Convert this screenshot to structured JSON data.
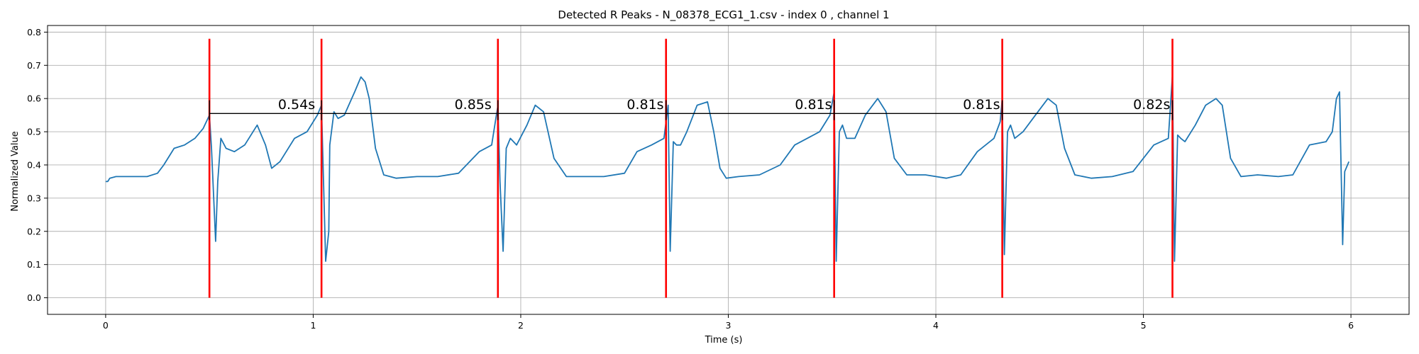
{
  "chart_data": {
    "type": "line",
    "title": "Detected R Peaks - N_08378_ECG1_1.csv - index 0 , channel 1",
    "xlabel": "Time (s)",
    "ylabel": "Normalized Value",
    "xlim": [
      -0.28,
      6.28
    ],
    "ylim": [
      -0.05,
      0.82
    ],
    "xticks": [
      0,
      1,
      2,
      3,
      4,
      5,
      6
    ],
    "xtick_labels": [
      "0",
      "1",
      "2",
      "3",
      "4",
      "5",
      "6"
    ],
    "yticks": [
      0.0,
      0.1,
      0.2,
      0.3,
      0.4,
      0.5,
      0.6,
      0.7,
      0.8
    ],
    "ytick_labels": [
      "0.0",
      "0.1",
      "0.2",
      "0.3",
      "0.4",
      "0.5",
      "0.6",
      "0.7",
      "0.8"
    ],
    "grid": true,
    "colors": {
      "signal": "#1f77b4",
      "peaks": "#ff0000",
      "interval_line": "#000000"
    },
    "signal": {
      "x": [
        0.0,
        0.01,
        0.02,
        0.05,
        0.1,
        0.2,
        0.25,
        0.28,
        0.33,
        0.38,
        0.43,
        0.47,
        0.5,
        0.51,
        0.53,
        0.54,
        0.555,
        0.58,
        0.62,
        0.67,
        0.73,
        0.77,
        0.8,
        0.84,
        0.87,
        0.91,
        0.97,
        1.02,
        1.04,
        1.06,
        1.075,
        1.08,
        1.1,
        1.12,
        1.15,
        1.2,
        1.23,
        1.25,
        1.27,
        1.3,
        1.34,
        1.4,
        1.5,
        1.6,
        1.7,
        1.8,
        1.86,
        1.89,
        1.9,
        1.915,
        1.93,
        1.95,
        1.98,
        2.03,
        2.07,
        2.11,
        2.16,
        2.22,
        2.3,
        2.4,
        2.5,
        2.56,
        2.63,
        2.69,
        2.71,
        2.72,
        2.735,
        2.75,
        2.77,
        2.8,
        2.85,
        2.9,
        2.93,
        2.96,
        2.99,
        3.05,
        3.15,
        3.25,
        3.32,
        3.38,
        3.44,
        3.49,
        3.51,
        3.52,
        3.535,
        3.55,
        3.57,
        3.61,
        3.66,
        3.72,
        3.76,
        3.8,
        3.86,
        3.95,
        4.05,
        4.12,
        4.2,
        4.28,
        4.31,
        4.32,
        4.33,
        4.345,
        4.36,
        4.38,
        4.42,
        4.48,
        4.54,
        4.58,
        4.62,
        4.67,
        4.75,
        4.85,
        4.95,
        5.05,
        5.12,
        5.14,
        5.15,
        5.165,
        5.18,
        5.2,
        5.25,
        5.3,
        5.35,
        5.38,
        5.42,
        5.47,
        5.55,
        5.65,
        5.72,
        5.8,
        5.88,
        5.91,
        5.93,
        5.945,
        5.96,
        5.97,
        5.99
      ],
      "y": [
        0.35,
        0.35,
        0.36,
        0.365,
        0.365,
        0.365,
        0.375,
        0.4,
        0.45,
        0.46,
        0.48,
        0.51,
        0.55,
        0.45,
        0.17,
        0.35,
        0.48,
        0.45,
        0.44,
        0.46,
        0.52,
        0.46,
        0.39,
        0.41,
        0.44,
        0.48,
        0.5,
        0.55,
        0.58,
        0.11,
        0.2,
        0.46,
        0.56,
        0.54,
        0.55,
        0.62,
        0.665,
        0.65,
        0.6,
        0.45,
        0.37,
        0.36,
        0.365,
        0.365,
        0.375,
        0.44,
        0.46,
        0.58,
        0.35,
        0.14,
        0.45,
        0.48,
        0.46,
        0.52,
        0.58,
        0.56,
        0.42,
        0.365,
        0.365,
        0.365,
        0.375,
        0.44,
        0.46,
        0.48,
        0.58,
        0.14,
        0.47,
        0.46,
        0.46,
        0.5,
        0.58,
        0.59,
        0.5,
        0.39,
        0.36,
        0.365,
        0.37,
        0.4,
        0.46,
        0.48,
        0.5,
        0.55,
        0.62,
        0.11,
        0.5,
        0.52,
        0.48,
        0.48,
        0.55,
        0.6,
        0.56,
        0.42,
        0.37,
        0.37,
        0.36,
        0.37,
        0.44,
        0.48,
        0.53,
        0.6,
        0.13,
        0.5,
        0.52,
        0.48,
        0.5,
        0.55,
        0.6,
        0.58,
        0.45,
        0.37,
        0.36,
        0.365,
        0.38,
        0.46,
        0.48,
        0.67,
        0.11,
        0.49,
        0.48,
        0.47,
        0.52,
        0.58,
        0.6,
        0.58,
        0.42,
        0.365,
        0.37,
        0.365,
        0.37,
        0.46,
        0.47,
        0.5,
        0.6,
        0.62,
        0.16,
        0.38,
        0.41
      ]
    },
    "peaks": {
      "times": [
        0.5,
        1.04,
        1.89,
        2.7,
        3.51,
        4.32,
        5.14
      ],
      "y_range": [
        0.0,
        0.78
      ]
    },
    "interval_line": {
      "y": 0.555,
      "x_range": [
        0.5,
        5.14
      ]
    },
    "intervals": [
      {
        "label": "0.54s",
        "x": 0.92,
        "y": 0.56
      },
      {
        "label": "0.85s",
        "x": 1.77,
        "y": 0.56
      },
      {
        "label": "0.81s",
        "x": 2.6,
        "y": 0.56
      },
      {
        "label": "0.81s",
        "x": 3.41,
        "y": 0.56
      },
      {
        "label": "0.81s",
        "x": 4.22,
        "y": 0.56
      },
      {
        "label": "0.82s",
        "x": 5.04,
        "y": 0.56
      }
    ]
  }
}
